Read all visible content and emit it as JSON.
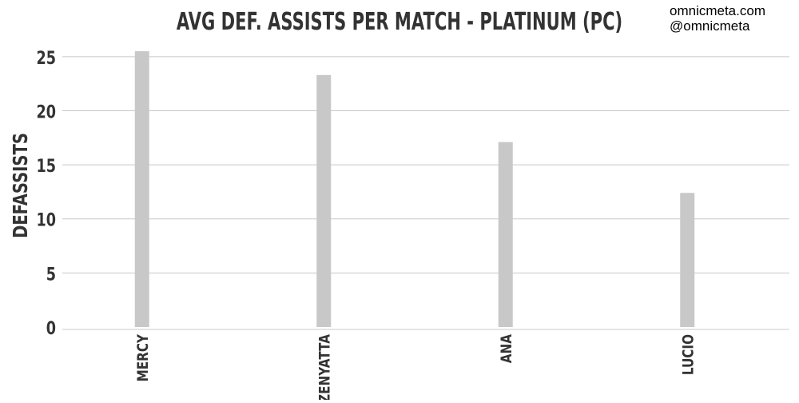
{
  "credits": {
    "site": "omnicmeta.com",
    "handle": "@omnicmeta"
  },
  "chart_data": {
    "type": "bar",
    "title": "AVG DEF. ASSISTS PER MATCH - PLATINUM (PC)",
    "xlabel": "",
    "ylabel": "DEFASSISTS",
    "categories": [
      "MERCY",
      "ZENYATTA",
      "ANA",
      "LUCIO"
    ],
    "values": [
      25.5,
      23.3,
      17.1,
      12.4
    ],
    "ylim": [
      0,
      25.8
    ],
    "yticks": [
      0,
      5,
      10,
      15,
      20,
      25
    ],
    "grid": true,
    "legend": "none",
    "colors": {
      "bar": "#c8c8c8",
      "grid": "#c8c8c8",
      "text": "#333333"
    }
  }
}
